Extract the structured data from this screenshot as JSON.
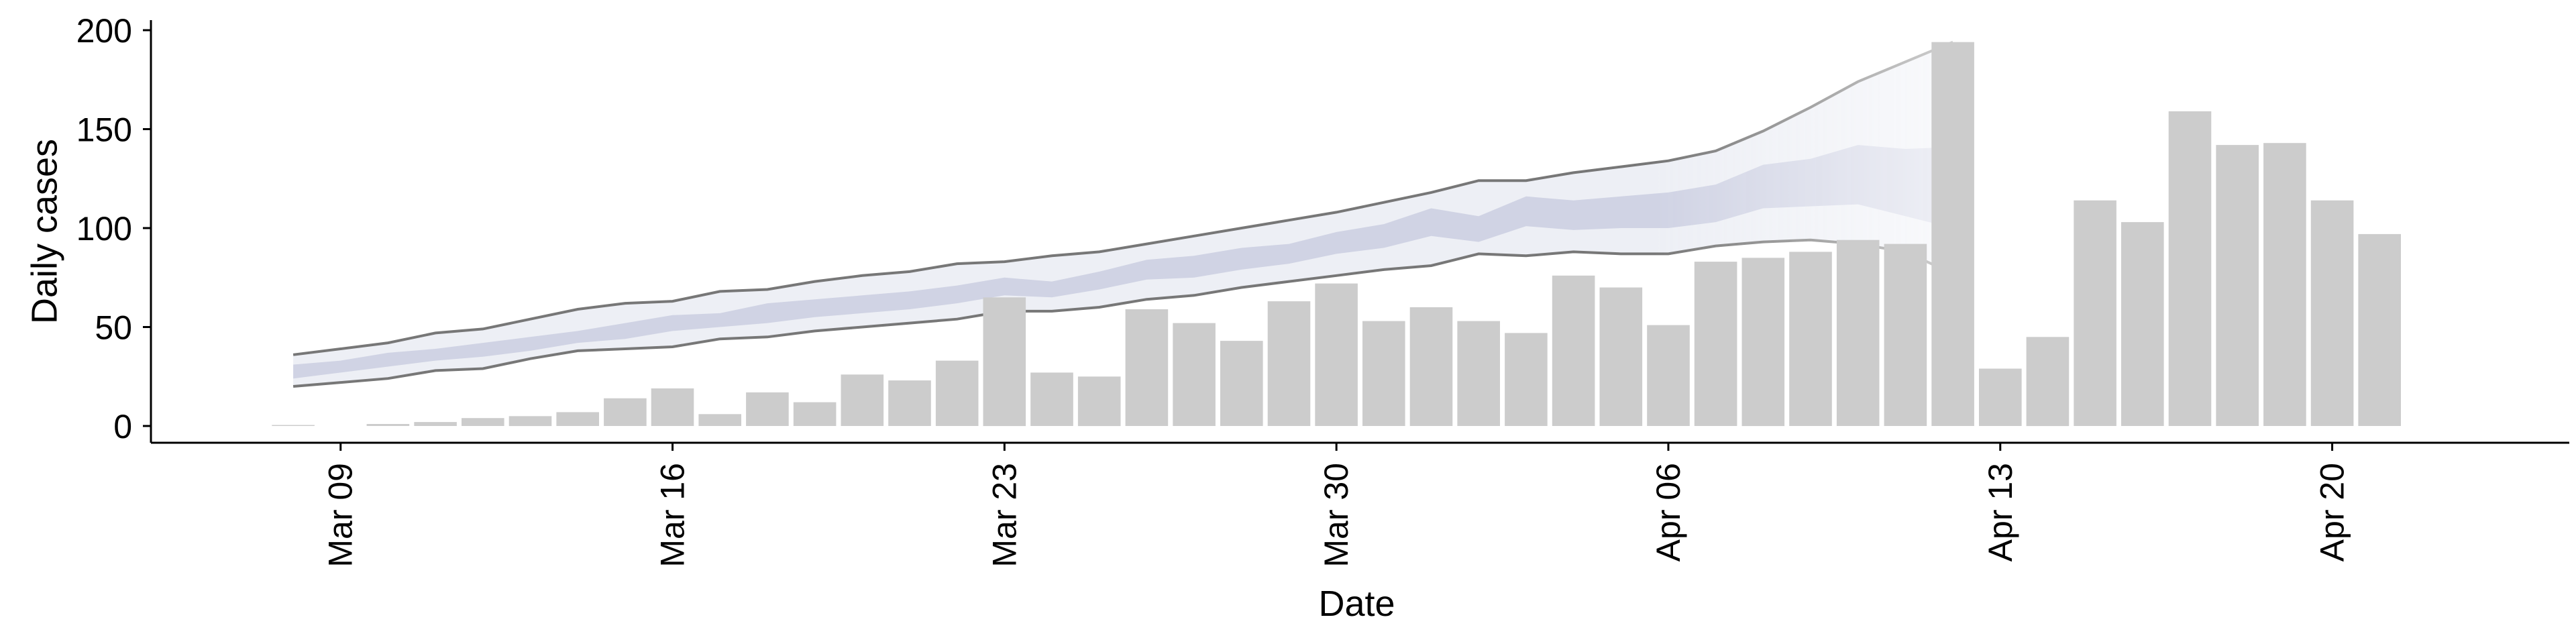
{
  "chart_data": {
    "type": "bar",
    "title": "",
    "xlabel": "Date",
    "ylabel": "Daily cases",
    "ylim": [
      0,
      200
    ],
    "yticks": [
      0,
      50,
      100,
      150,
      200
    ],
    "xlim": [
      "2020-03-05",
      "2020-04-25"
    ],
    "xtick_dates": [
      "2020-03-09",
      "2020-03-16",
      "2020-03-23",
      "2020-03-30",
      "2020-04-06",
      "2020-04-13",
      "2020-04-20"
    ],
    "xtick_labels": [
      "Mar 09",
      "Mar 16",
      "Mar 23",
      "Mar 30",
      "Apr 06",
      "Apr 13",
      "Apr 20"
    ],
    "grid": false,
    "colors": {
      "bars": "#cccccc",
      "band_outer": "#e9ebf3",
      "band_inner": "#c5cadd",
      "bound_lines": "#777777",
      "axis": "#000000"
    },
    "bars": {
      "x": [
        "2020-03-08",
        "2020-03-09",
        "2020-03-10",
        "2020-03-11",
        "2020-03-12",
        "2020-03-13",
        "2020-03-14",
        "2020-03-15",
        "2020-03-16",
        "2020-03-17",
        "2020-03-18",
        "2020-03-19",
        "2020-03-20",
        "2020-03-21",
        "2020-03-22",
        "2020-03-23",
        "2020-03-24",
        "2020-03-25",
        "2020-03-26",
        "2020-03-27",
        "2020-03-28",
        "2020-03-29",
        "2020-03-30",
        "2020-03-31",
        "2020-04-01",
        "2020-04-02",
        "2020-04-03",
        "2020-04-04",
        "2020-04-05",
        "2020-04-06",
        "2020-04-07",
        "2020-04-08",
        "2020-04-09",
        "2020-04-10",
        "2020-04-11",
        "2020-04-12",
        "2020-04-13",
        "2020-04-14",
        "2020-04-15",
        "2020-04-16",
        "2020-04-17",
        "2020-04-18",
        "2020-04-19",
        "2020-04-20",
        "2020-04-21"
      ],
      "values": [
        0.5,
        0,
        1,
        2,
        4,
        5,
        7,
        14,
        19,
        6,
        17,
        12,
        26,
        23,
        33,
        65,
        27,
        25,
        59,
        52,
        43,
        63,
        72,
        53,
        60,
        53,
        47,
        76,
        70,
        51,
        83,
        85,
        88,
        94,
        92,
        194,
        29,
        45,
        114,
        103,
        159,
        142,
        143,
        114,
        97
      ]
    },
    "band": {
      "x": [
        "2020-03-08",
        "2020-03-09",
        "2020-03-10",
        "2020-03-11",
        "2020-03-12",
        "2020-03-13",
        "2020-03-14",
        "2020-03-15",
        "2020-03-16",
        "2020-03-17",
        "2020-03-18",
        "2020-03-19",
        "2020-03-20",
        "2020-03-21",
        "2020-03-22",
        "2020-03-23",
        "2020-03-24",
        "2020-03-25",
        "2020-03-26",
        "2020-03-27",
        "2020-03-28",
        "2020-03-29",
        "2020-03-30",
        "2020-03-31",
        "2020-04-01",
        "2020-04-02",
        "2020-04-03",
        "2020-04-04",
        "2020-04-05",
        "2020-04-06",
        "2020-04-07",
        "2020-04-08",
        "2020-04-09",
        "2020-04-10",
        "2020-04-11",
        "2020-04-12"
      ],
      "upper": [
        36,
        39,
        42,
        47,
        49,
        54,
        59,
        62,
        63,
        68,
        69,
        73,
        76,
        78,
        82,
        83,
        86,
        88,
        92,
        96,
        100,
        104,
        108,
        113,
        118,
        124,
        124,
        128,
        131,
        134,
        139,
        149,
        161,
        174,
        184,
        194
      ],
      "lower": [
        20,
        22,
        24,
        28,
        29,
        34,
        38,
        39,
        40,
        44,
        45,
        48,
        50,
        52,
        54,
        58,
        58,
        60,
        64,
        66,
        70,
        73,
        76,
        79,
        81,
        87,
        86,
        88,
        87,
        87,
        91,
        93,
        94,
        92,
        88,
        77
      ],
      "inner_upper": [
        31,
        33,
        37,
        39,
        42,
        45,
        48,
        52,
        56,
        57,
        62,
        64,
        66,
        68,
        71,
        75,
        73,
        78,
        84,
        86,
        90,
        92,
        98,
        102,
        110,
        106,
        116,
        114,
        116,
        118,
        122,
        132,
        135,
        142,
        140,
        141
      ],
      "inner_lower": [
        24,
        27,
        30,
        33,
        35,
        38,
        42,
        44,
        48,
        50,
        52,
        55,
        57,
        59,
        62,
        66,
        65,
        69,
        74,
        75,
        79,
        82,
        87,
        90,
        96,
        93,
        101,
        99,
        100,
        100,
        103,
        110,
        111,
        112,
        106,
        100
      ]
    }
  }
}
